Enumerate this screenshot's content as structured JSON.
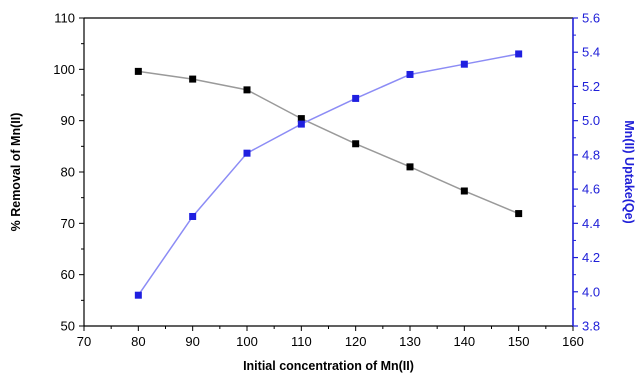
{
  "chart_data": {
    "type": "line",
    "xlabel": "Initial concentration of Mn(II)",
    "ylabel": "% Removal of Mn(II)",
    "y2label": "Mn(II) Uptake(Qe)",
    "xlim": [
      70,
      160
    ],
    "ylim": [
      50,
      110
    ],
    "y2lim": [
      3.8,
      5.6
    ],
    "x_ticks": [
      "70",
      "80",
      "90",
      "100",
      "110",
      "120",
      "130",
      "140",
      "150",
      "160"
    ],
    "y_ticks": [
      "50",
      "60",
      "70",
      "80",
      "90",
      "100",
      "110"
    ],
    "y2_ticks": [
      "3.8",
      "4.0",
      "4.2",
      "4.4",
      "4.6",
      "4.8",
      "5.0",
      "5.2",
      "5.4",
      "5.6"
    ],
    "grid": false,
    "x": [
      80,
      90,
      100,
      110,
      120,
      130,
      140,
      150
    ],
    "series": [
      {
        "axis": "left",
        "marker": "square",
        "color": "#000000",
        "line_color": "#9a9a9a",
        "values": [
          99.6,
          98.1,
          96.0,
          90.4,
          85.5,
          81.0,
          76.3,
          71.9
        ]
      },
      {
        "axis": "right",
        "marker": "square",
        "color": "#1f1fe0",
        "line_color": "#8c8cf5",
        "values": [
          3.98,
          4.44,
          4.81,
          4.98,
          5.13,
          5.27,
          5.33,
          5.39
        ]
      }
    ],
    "colors": {
      "left_axis": "#000000",
      "right_axis": "#2020d8"
    }
  }
}
